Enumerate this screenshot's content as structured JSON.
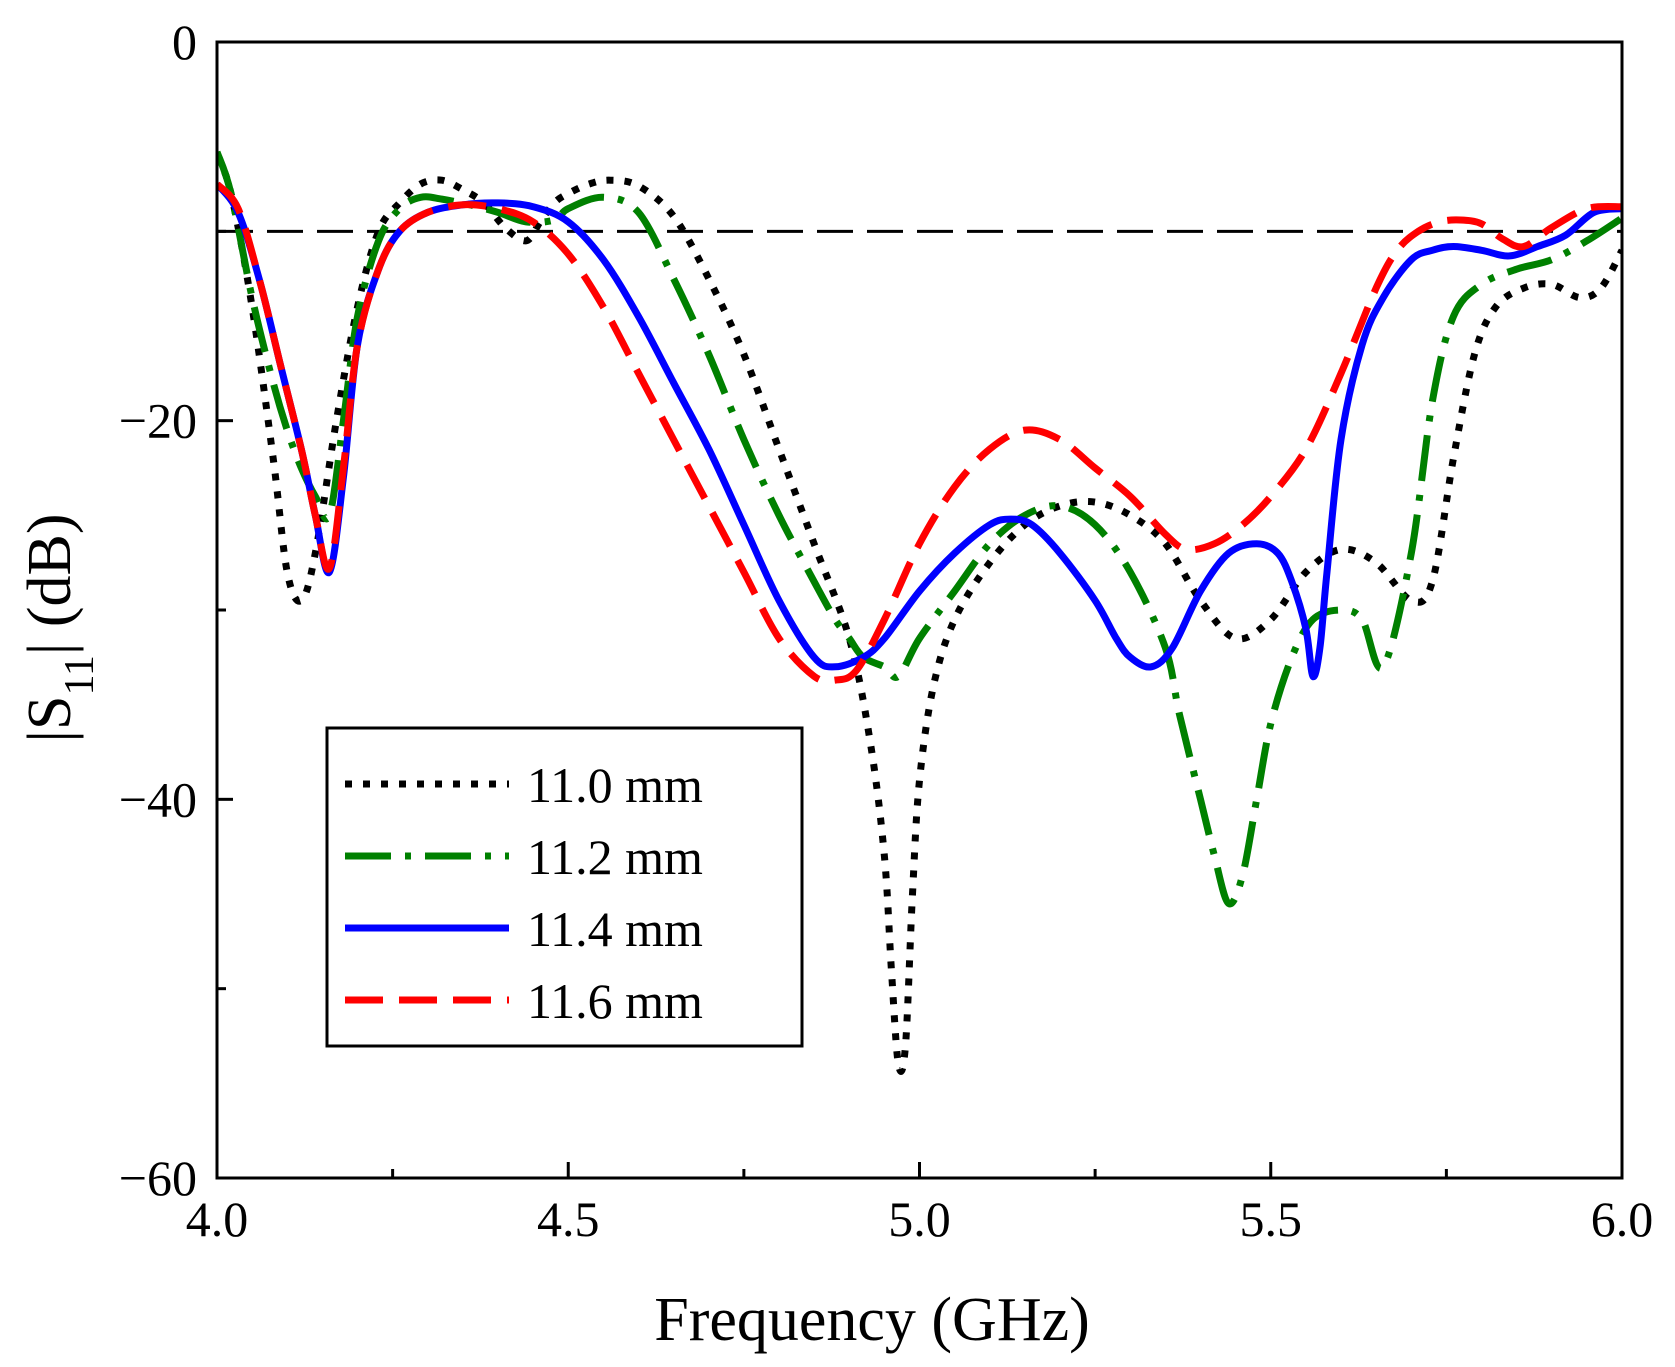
{
  "chart_data": {
    "type": "line",
    "xlabel": "Frequency (GHz)",
    "ylabel": {
      "pre": "|S",
      "sub": "11",
      "post": "| (dB)"
    },
    "xlim": [
      4.0,
      6.0
    ],
    "ylim": [
      -60,
      0
    ],
    "x_ticks": [
      {
        "v": 4.0,
        "label": "4.0"
      },
      {
        "v": 4.5,
        "label": "4.5"
      },
      {
        "v": 5.0,
        "label": "5.0"
      },
      {
        "v": 5.5,
        "label": "5.5"
      },
      {
        "v": 6.0,
        "label": "6.0"
      }
    ],
    "x_minor_ticks": [
      4.25,
      4.75,
      5.25,
      5.75
    ],
    "y_ticks": [
      {
        "v": 0,
        "label": "0"
      },
      {
        "v": -20,
        "label": "−20"
      },
      {
        "v": -40,
        "label": "−40"
      },
      {
        "v": -60,
        "label": "−60"
      }
    ],
    "y_minor_ticks": [
      -10,
      -30,
      -50
    ],
    "reference_line": {
      "y": -10,
      "color": "#000000",
      "dash": "36,14"
    },
    "legend_position": "lower-left",
    "series": [
      {
        "name": "11.0 mm",
        "color": "#000000",
        "dash": "7,11",
        "x": [
          4.0,
          4.02,
          4.05,
          4.08,
          4.1,
          4.12,
          4.14,
          4.17,
          4.2,
          4.23,
          4.26,
          4.29,
          4.32,
          4.35,
          4.38,
          4.41,
          4.44,
          4.46,
          4.48,
          4.5,
          4.53,
          4.56,
          4.6,
          4.65,
          4.7,
          4.75,
          4.8,
          4.85,
          4.9,
          4.93,
          4.95,
          4.96,
          4.97,
          4.98,
          4.99,
          5.0,
          5.02,
          5.05,
          5.1,
          5.15,
          5.2,
          5.25,
          5.3,
          5.35,
          5.4,
          5.45,
          5.5,
          5.55,
          5.6,
          5.65,
          5.7,
          5.73,
          5.76,
          5.79,
          5.82,
          5.86,
          5.9,
          5.94,
          5.97,
          6.0
        ],
        "y": [
          -6,
          -8,
          -14,
          -22,
          -28,
          -29.5,
          -27,
          -20,
          -14,
          -10,
          -8.5,
          -7.5,
          -7.3,
          -7.8,
          -8.5,
          -9.8,
          -10.5,
          -9.5,
          -8.5,
          -8,
          -7.5,
          -7.3,
          -7.6,
          -9.2,
          -12.5,
          -16.5,
          -21.5,
          -26.5,
          -31.5,
          -37,
          -43,
          -49,
          -54,
          -53,
          -45,
          -39,
          -34,
          -30.5,
          -27.5,
          -25.5,
          -24.5,
          -24.3,
          -25,
          -26.5,
          -29.5,
          -31.5,
          -30.5,
          -28,
          -26.8,
          -27.5,
          -29.5,
          -28.5,
          -22,
          -16.5,
          -14,
          -13,
          -12.8,
          -13.5,
          -13,
          -11
        ]
      },
      {
        "name": "11.2 mm",
        "color": "#008000",
        "dash": "46,14,6,14",
        "x": [
          4.0,
          4.02,
          4.05,
          4.08,
          4.1,
          4.12,
          4.14,
          4.16,
          4.18,
          4.2,
          4.23,
          4.26,
          4.29,
          4.32,
          4.36,
          4.4,
          4.44,
          4.48,
          4.5,
          4.55,
          4.6,
          4.65,
          4.7,
          4.75,
          4.8,
          4.85,
          4.88,
          4.9,
          4.92,
          4.95,
          4.97,
          5.0,
          5.05,
          5.1,
          5.15,
          5.2,
          5.25,
          5.3,
          5.35,
          5.37,
          5.4,
          5.42,
          5.44,
          5.46,
          5.48,
          5.5,
          5.53,
          5.56,
          5.6,
          5.63,
          5.66,
          5.7,
          5.73,
          5.76,
          5.8,
          5.85,
          5.9,
          5.95,
          6.0
        ],
        "y": [
          -5.8,
          -8,
          -13.5,
          -18,
          -20.5,
          -22.5,
          -24,
          -25,
          -20,
          -14.5,
          -10.5,
          -8.8,
          -8.2,
          -8.3,
          -8.6,
          -9,
          -9.5,
          -9.4,
          -8.8,
          -8.2,
          -9,
          -12.5,
          -16.5,
          -21,
          -25,
          -28.5,
          -30.5,
          -31.5,
          -32.5,
          -33,
          -33.5,
          -31.5,
          -29,
          -26.5,
          -25,
          -24.5,
          -25.5,
          -28,
          -32,
          -35.5,
          -40,
          -43,
          -45.5,
          -44,
          -40,
          -36,
          -32.5,
          -30.5,
          -30,
          -30.5,
          -33,
          -27,
          -19,
          -14.5,
          -12.8,
          -12,
          -11.5,
          -10.5,
          -9.3
        ]
      },
      {
        "name": "11.4 mm",
        "color": "#0000ff",
        "dash": "",
        "x": [
          4.0,
          4.03,
          4.06,
          4.09,
          4.12,
          4.14,
          4.16,
          4.18,
          4.2,
          4.23,
          4.26,
          4.3,
          4.35,
          4.4,
          4.45,
          4.5,
          4.55,
          4.6,
          4.65,
          4.7,
          4.75,
          4.8,
          4.85,
          4.88,
          4.92,
          4.95,
          5.0,
          5.05,
          5.1,
          5.13,
          5.16,
          5.2,
          5.25,
          5.28,
          5.3,
          5.33,
          5.36,
          5.4,
          5.44,
          5.48,
          5.51,
          5.53,
          5.55,
          5.56,
          5.57,
          5.58,
          5.6,
          5.63,
          5.66,
          5.7,
          5.73,
          5.76,
          5.8,
          5.84,
          5.88,
          5.92,
          5.96,
          6.0
        ],
        "y": [
          -7.5,
          -9,
          -12.5,
          -17,
          -21.5,
          -25,
          -28,
          -23,
          -16,
          -12,
          -10,
          -9,
          -8.6,
          -8.5,
          -8.7,
          -9.5,
          -11.5,
          -14.5,
          -18,
          -21.5,
          -25.5,
          -29.5,
          -32.5,
          -33,
          -32.5,
          -31.5,
          -29,
          -27,
          -25.5,
          -25.2,
          -25.5,
          -27,
          -29.5,
          -31.5,
          -32.5,
          -33,
          -32,
          -29,
          -27,
          -26.5,
          -27,
          -28.5,
          -31,
          -33.5,
          -32,
          -28,
          -21,
          -16,
          -13.5,
          -11.5,
          -11,
          -10.8,
          -11,
          -11.3,
          -10.8,
          -10.2,
          -9,
          -8.8
        ]
      },
      {
        "name": "11.6 mm",
        "color": "#ff0000",
        "dash": "38,16",
        "x": [
          4.0,
          4.03,
          4.06,
          4.09,
          4.12,
          4.14,
          4.16,
          4.18,
          4.2,
          4.23,
          4.26,
          4.3,
          4.35,
          4.4,
          4.45,
          4.5,
          4.55,
          4.6,
          4.65,
          4.7,
          4.75,
          4.8,
          4.85,
          4.88,
          4.91,
          4.95,
          5.0,
          5.05,
          5.1,
          5.15,
          5.2,
          5.25,
          5.3,
          5.35,
          5.38,
          5.42,
          5.46,
          5.5,
          5.55,
          5.6,
          5.65,
          5.68,
          5.71,
          5.74,
          5.77,
          5.8,
          5.83,
          5.86,
          5.9,
          5.95,
          6.0
        ],
        "y": [
          -7.5,
          -8.8,
          -12.5,
          -17,
          -21.5,
          -25,
          -27.8,
          -22.5,
          -16,
          -12,
          -10,
          -9,
          -8.6,
          -8.8,
          -9.5,
          -11.2,
          -14,
          -17.5,
          -21,
          -24.5,
          -28,
          -31.5,
          -33.5,
          -33.7,
          -33.2,
          -30.5,
          -26.5,
          -23.5,
          -21.5,
          -20.5,
          -21,
          -22.5,
          -24,
          -26,
          -26.8,
          -26.5,
          -25.5,
          -24,
          -21.5,
          -17.5,
          -13,
          -11,
          -10,
          -9.5,
          -9.4,
          -9.6,
          -10.4,
          -10.8,
          -9.8,
          -8.8,
          -8.7
        ]
      }
    ]
  }
}
